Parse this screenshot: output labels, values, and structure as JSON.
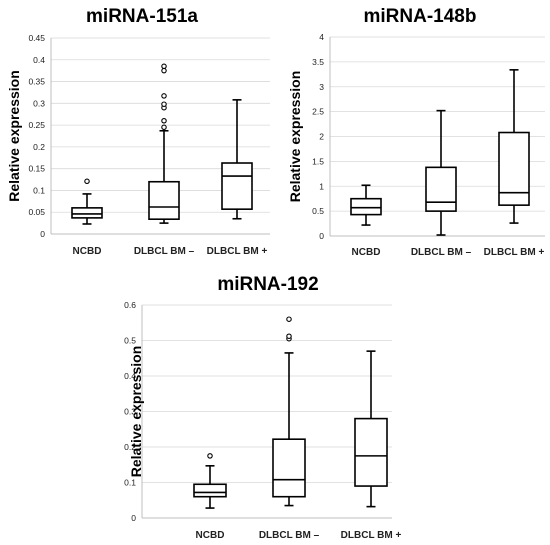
{
  "chart_data": [
    {
      "type": "box",
      "title": "miRNA-151a",
      "ylabel": "Relative expression",
      "xlabel": "",
      "ylim": [
        0,
        0.45
      ],
      "yticks": [
        "0",
        "0.05",
        "0.1",
        "0.15",
        "0.2",
        "0.25",
        "0.3",
        "0.35",
        "0.4",
        "0.45"
      ],
      "grid": true,
      "categories": [
        "NCBD",
        "DLBCL BM –",
        "DLBCL BM +"
      ],
      "boxes": [
        {
          "whisker_low": 0.023,
          "q1": 0.037,
          "median": 0.046,
          "q3": 0.06,
          "whisker_high": 0.092,
          "outliers": [
            0.121
          ]
        },
        {
          "whisker_low": 0.025,
          "q1": 0.034,
          "median": 0.062,
          "q3": 0.12,
          "whisker_high": 0.237,
          "outliers": [
            0.245,
            0.26,
            0.29,
            0.298,
            0.317,
            0.375,
            0.385
          ]
        },
        {
          "whisker_low": 0.035,
          "q1": 0.057,
          "median": 0.133,
          "q3": 0.163,
          "whisker_high": 0.308,
          "outliers": []
        }
      ]
    },
    {
      "type": "box",
      "title": "miRNA-148b",
      "ylabel": "Relative expression",
      "xlabel": "",
      "ylim": [
        0,
        4
      ],
      "yticks": [
        "0",
        "0.5",
        "1",
        "1.5",
        "2",
        "2.5",
        "3",
        "3.5",
        "4"
      ],
      "grid": true,
      "categories": [
        "NCBD",
        "DLBCL BM –",
        "DLBCL BM +"
      ],
      "boxes": [
        {
          "whisker_low": 0.22,
          "q1": 0.43,
          "median": 0.57,
          "q3": 0.75,
          "whisker_high": 1.02,
          "outliers": []
        },
        {
          "whisker_low": 0.02,
          "q1": 0.5,
          "median": 0.68,
          "q3": 1.38,
          "whisker_high": 2.52,
          "outliers": []
        },
        {
          "whisker_low": 0.26,
          "q1": 0.62,
          "median": 0.87,
          "q3": 2.08,
          "whisker_high": 3.34,
          "outliers": []
        }
      ]
    },
    {
      "type": "box",
      "title": "miRNA-192",
      "ylabel": "Relative expression",
      "xlabel": "",
      "ylim": [
        0,
        0.6
      ],
      "yticks": [
        "0",
        "0.1",
        "0.2",
        "0.3",
        "0.4",
        "0.5",
        "0.6"
      ],
      "grid": true,
      "categories": [
        "NCBD",
        "DLBCL BM –",
        "DLBCL BM +"
      ],
      "boxes": [
        {
          "whisker_low": 0.028,
          "q1": 0.06,
          "median": 0.072,
          "q3": 0.095,
          "whisker_high": 0.147,
          "outliers": [
            0.175
          ]
        },
        {
          "whisker_low": 0.035,
          "q1": 0.06,
          "median": 0.108,
          "q3": 0.222,
          "whisker_high": 0.465,
          "outliers": [
            0.505,
            0.512,
            0.56
          ]
        },
        {
          "whisker_low": 0.032,
          "q1": 0.09,
          "median": 0.175,
          "q3": 0.28,
          "whisker_high": 0.47,
          "outliers": []
        }
      ]
    }
  ]
}
